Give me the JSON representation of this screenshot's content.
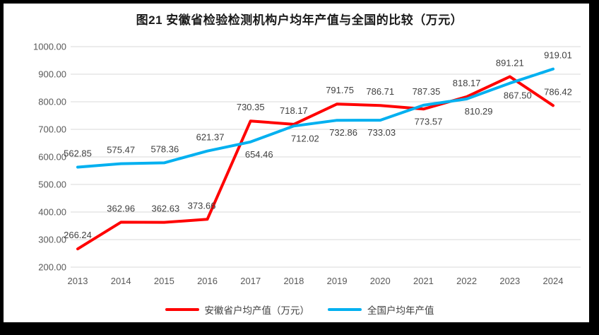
{
  "page": {
    "title": "图21 安徽省检验检测机构户均年产值与全国的比较（万元）"
  },
  "chart_data": {
    "type": "line",
    "title": "图21 安徽省检验检测机构户均年产值与全国的比较（万元）",
    "x": [
      "2013",
      "2014",
      "2015",
      "2016",
      "2017",
      "2018",
      "2019",
      "2020",
      "2021",
      "2022",
      "2023",
      "2024"
    ],
    "series": [
      {
        "name": "安徽省户均产值（万元）",
        "color": "#FF0000",
        "values": [
          266.24,
          362.96,
          362.63,
          373.66,
          730.35,
          718.17,
          791.75,
          786.71,
          773.57,
          818.17,
          891.21,
          786.42
        ],
        "label_side": [
          "above",
          "above",
          "above",
          "above",
          "above",
          "above",
          "above",
          "above",
          "below",
          "above",
          "above",
          "above"
        ],
        "label_dx": [
          0,
          0,
          2,
          -8,
          0,
          0,
          4,
          0,
          7,
          0,
          0,
          7
        ]
      },
      {
        "name": "全国户均年产值",
        "color": "#00B0F0",
        "values": [
          562.85,
          575.47,
          578.36,
          621.37,
          654.46,
          712.02,
          732.86,
          733.03,
          787.35,
          810.29,
          867.5,
          919.01
        ],
        "label_side": [
          "above",
          "above",
          "above",
          "above",
          "below",
          "below",
          "below",
          "below",
          "above",
          "below",
          "below",
          "above"
        ],
        "label_dx": [
          0,
          0,
          1,
          4,
          12,
          16,
          9,
          2,
          4,
          17,
          11,
          7
        ]
      }
    ],
    "ylim": [
      200,
      1000
    ],
    "ytick_step": 100,
    "ytick_labels": [
      "200.00",
      "300.00",
      "400.00",
      "500.00",
      "600.00",
      "700.00",
      "800.00",
      "900.00",
      "1000.00"
    ],
    "grid": true,
    "legend_position": "bottom",
    "ylabel": "",
    "xlabel": "",
    "colors": {
      "grid": "#D9D9D9",
      "axis_text": "#595959",
      "data_label_text": "#404040",
      "title_text": "#1A1A1A",
      "frame": "#000000",
      "background": "#FFFFFF"
    }
  }
}
